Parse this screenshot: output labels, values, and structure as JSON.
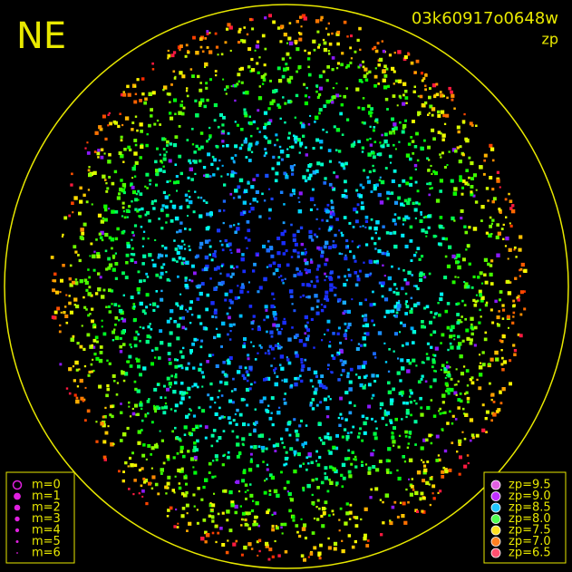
{
  "header": {
    "direction": "NE",
    "frame_id": "03k60917o0648w",
    "mode": "zp"
  },
  "magnitude_legend": [
    "m=0",
    "m=1",
    "m=2",
    "m=3",
    "m=4",
    "m=5",
    "m=6"
  ],
  "zp_legend": [
    {
      "label": "zp=9.5",
      "color": "#e060e0"
    },
    {
      "label": "zp=9.0",
      "color": "#c030ff"
    },
    {
      "label": "zp=8.5",
      "color": "#20c8ff"
    },
    {
      "label": "zp=8.0",
      "color": "#50ff50"
    },
    {
      "label": "zp=7.5",
      "color": "#ffe020"
    },
    {
      "label": "zp=7.0",
      "color": "#ff8020"
    },
    {
      "label": "zp=6.5",
      "color": "#ff5070"
    }
  ]
}
